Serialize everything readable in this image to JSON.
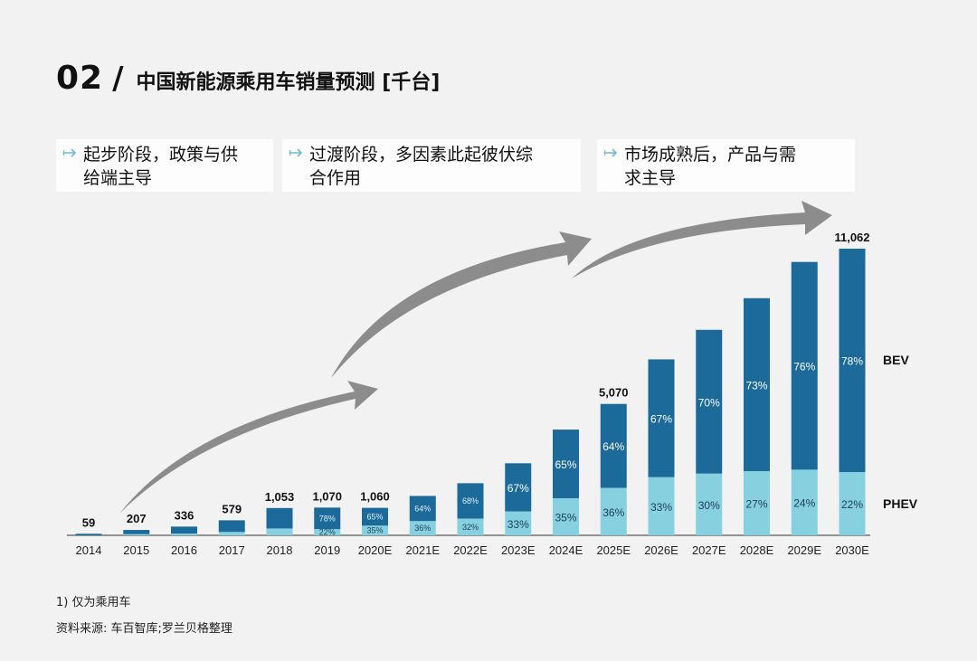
{
  "header": {
    "number": "02",
    "slash": "/",
    "title": "中国新能源乘用车销量预测 [千台]"
  },
  "phases": [
    {
      "text": "起步阶段，政策与供\n给端主导"
    },
    {
      "text": "过渡阶段，多因素此起彼伏综\n合作用"
    },
    {
      "text": "市场成熟后，产品与需\n求主导"
    }
  ],
  "footnotes": {
    "note1": "1) 仅为乘用车",
    "source": "资料来源: 车百智库;罗兰贝格整理"
  },
  "colors": {
    "bev": "#1b6a9a",
    "phev": "#86d0e0",
    "arrow": "#8c8c8c",
    "background": "#f2f2f3"
  },
  "icons": {
    "phase_bullet": "arrow-right-icon",
    "trend": "curved-arrow-icon"
  },
  "chart_data": {
    "type": "bar",
    "stacked": true,
    "categories": [
      "2014",
      "2015",
      "2016",
      "2017",
      "2018",
      "2019",
      "2020E",
      "2021E",
      "2022E",
      "2023E",
      "2024E",
      "2025E",
      "2026E",
      "2027E",
      "2028E",
      "2029E",
      "2030E"
    ],
    "totals": [
      59,
      207,
      336,
      579,
      1053,
      1070,
      1060,
      null,
      null,
      null,
      null,
      5070,
      null,
      null,
      null,
      null,
      11062
    ],
    "total_labels": [
      "59",
      "207",
      "336",
      "579",
      "1,053",
      "1,070",
      "1,060",
      "",
      "",
      "",
      "",
      "5,070",
      "",
      "",
      "",
      "",
      "11,062"
    ],
    "estimated_totals": [
      59,
      207,
      336,
      579,
      1053,
      1070,
      1060,
      1520,
      2010,
      2780,
      4080,
      5070,
      6790,
      7930,
      9150,
      10550,
      11062
    ],
    "series": [
      {
        "name": "BEV",
        "shares": [
          null,
          null,
          null,
          null,
          null,
          78,
          65,
          64,
          68,
          67,
          65,
          64,
          67,
          70,
          73,
          76,
          78
        ],
        "share_labels": [
          "",
          "",
          "",
          "",
          "",
          "78%",
          "65%",
          "64%",
          "68%",
          "67%",
          "65%",
          "64%",
          "67%",
          "70%",
          "73%",
          "76%",
          "78%"
        ]
      },
      {
        "name": "PHEV",
        "shares": [
          null,
          null,
          null,
          null,
          null,
          22,
          35,
          36,
          32,
          33,
          35,
          36,
          33,
          30,
          27,
          24,
          22
        ],
        "share_labels": [
          "",
          "",
          "",
          "",
          "",
          "22%",
          "35%",
          "36%",
          "32%",
          "33%",
          "35%",
          "36%",
          "33%",
          "30%",
          "27%",
          "24%",
          "22%"
        ]
      }
    ],
    "early_phev_share_estimate": [
      0.0,
      0.2,
      0.2,
      0.22,
      0.25
    ],
    "ylim": [
      0,
      11500
    ],
    "legend": "right"
  }
}
